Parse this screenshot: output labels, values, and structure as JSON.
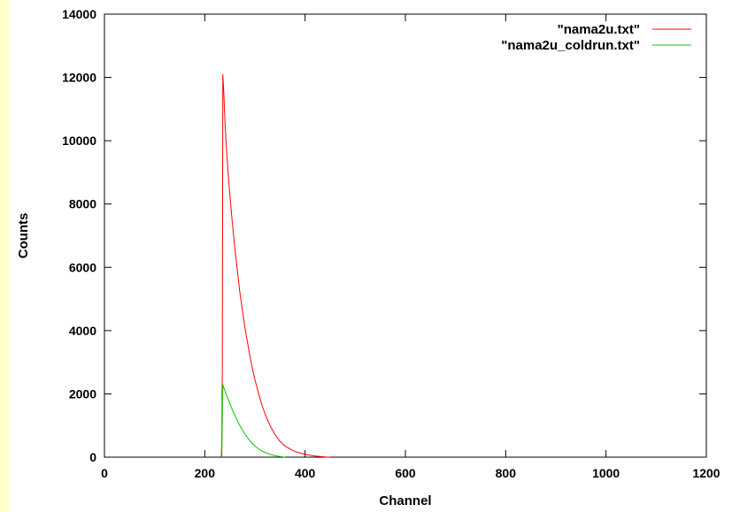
{
  "chart_data": {
    "type": "line",
    "xlabel": "Channel",
    "ylabel": "Counts",
    "xlim": [
      0,
      1200
    ],
    "ylim": [
      0,
      14000
    ],
    "x_ticks": [
      0,
      200,
      400,
      600,
      800,
      1000,
      1200
    ],
    "y_ticks": [
      0,
      2000,
      4000,
      6000,
      8000,
      10000,
      12000,
      14000
    ],
    "grid": false,
    "legend_position": "top-right",
    "series": [
      {
        "name": "\"nama2u.txt\"",
        "color": "#ff0000",
        "points": [
          [
            233,
            0
          ],
          [
            234,
            500
          ],
          [
            235,
            2800
          ],
          [
            236,
            12100
          ],
          [
            238,
            11500
          ],
          [
            240,
            10700
          ],
          [
            243,
            9800
          ],
          [
            246,
            9100
          ],
          [
            250,
            8300
          ],
          [
            255,
            7400
          ],
          [
            260,
            6600
          ],
          [
            265,
            5900
          ],
          [
            270,
            5200
          ],
          [
            275,
            4650
          ],
          [
            280,
            4100
          ],
          [
            285,
            3650
          ],
          [
            290,
            3200
          ],
          [
            295,
            2800
          ],
          [
            300,
            2450
          ],
          [
            305,
            2150
          ],
          [
            310,
            1850
          ],
          [
            315,
            1600
          ],
          [
            320,
            1380
          ],
          [
            330,
            1000
          ],
          [
            340,
            720
          ],
          [
            350,
            500
          ],
          [
            360,
            350
          ],
          [
            370,
            260
          ],
          [
            380,
            180
          ],
          [
            390,
            130
          ],
          [
            400,
            90
          ],
          [
            410,
            60
          ],
          [
            420,
            35
          ],
          [
            430,
            20
          ],
          [
            440,
            8
          ],
          [
            450,
            0
          ]
        ]
      },
      {
        "name": "\"nama2u_coldrun.txt\"",
        "color": "#00cc00",
        "points": [
          [
            234,
            0
          ],
          [
            236,
            2300
          ],
          [
            238,
            2200
          ],
          [
            240,
            2100
          ],
          [
            245,
            1900
          ],
          [
            250,
            1700
          ],
          [
            255,
            1500
          ],
          [
            260,
            1320
          ],
          [
            265,
            1150
          ],
          [
            270,
            1000
          ],
          [
            275,
            860
          ],
          [
            280,
            730
          ],
          [
            285,
            620
          ],
          [
            290,
            520
          ],
          [
            295,
            430
          ],
          [
            300,
            350
          ],
          [
            310,
            230
          ],
          [
            320,
            150
          ],
          [
            330,
            90
          ],
          [
            340,
            50
          ],
          [
            350,
            20
          ],
          [
            360,
            0
          ]
        ]
      }
    ]
  }
}
